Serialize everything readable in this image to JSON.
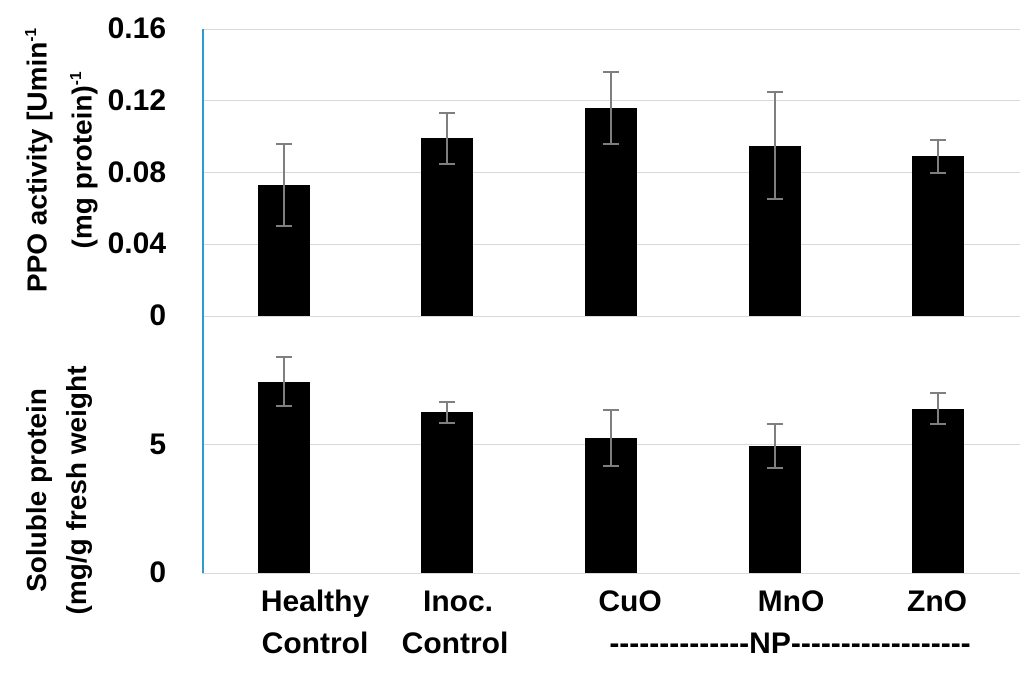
{
  "colors": {
    "bar": "#000000",
    "error_bar": "#7f7f7f",
    "gridline": "#d9d9d9",
    "axis_line": "#2e9bd0",
    "text": "#000000",
    "background": "#ffffff"
  },
  "x_axis": {
    "labels_line1": [
      "Healthy",
      "Inoc.",
      "CuO",
      "MnO",
      "ZnO"
    ],
    "labels_line2": [
      "Control",
      "Control"
    ],
    "np_group_label": "--------------NP------------------"
  },
  "chart_data": [
    {
      "type": "bar",
      "title": "",
      "categories": [
        "Healthy Control",
        "Inoc. Control",
        "CuO NP",
        "MnO NP",
        "ZnO NP"
      ],
      "values": [
        0.073,
        0.099,
        0.116,
        0.095,
        0.089
      ],
      "errors": [
        0.023,
        0.014,
        0.02,
        0.03,
        0.009
      ],
      "ylabel": {
        "line1": "PPO activity [Umin",
        "line1_sup": "-1",
        "line2": "(mg protein)",
        "line2_sup": "-1"
      },
      "ylim": [
        0,
        0.16
      ],
      "yticks": [
        0,
        0.04,
        0.08,
        0.12,
        0.16
      ],
      "ytick_labels": [
        "0",
        "0.04",
        "0.08",
        "0.12",
        "0.16"
      ],
      "grid": true,
      "legend": "none",
      "bar_color": "#000000"
    },
    {
      "type": "bar",
      "title": "",
      "categories": [
        "Healthy Control",
        "Inoc. Control",
        "CuO NP",
        "MnO NP",
        "ZnO NP"
      ],
      "values": [
        7.45,
        6.25,
        5.25,
        4.95,
        6.4
      ],
      "errors": [
        0.95,
        0.4,
        1.1,
        0.85,
        0.6
      ],
      "ylabel": {
        "line1": "Soluble protein",
        "line2": "(mg/g fresh weight"
      },
      "ylim": [
        0,
        10
      ],
      "yticks": [
        0,
        5
      ],
      "ytick_labels": [
        "0",
        "5"
      ],
      "grid": true,
      "legend": "none",
      "bar_color": "#000000"
    }
  ]
}
